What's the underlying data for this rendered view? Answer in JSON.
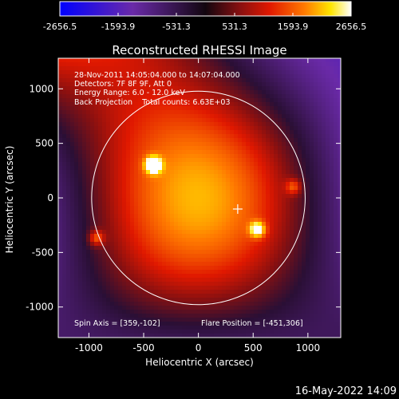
{
  "colorbar": {
    "ticks": [
      -2656.5,
      -1593.9,
      -531.3,
      531.3,
      1593.9,
      2656.5
    ],
    "tick_labels": [
      "-2656.5",
      "-1593.9",
      "-531.3",
      "531.3",
      "1593.9",
      "2656.5"
    ]
  },
  "chart_data": {
    "type": "heatmap",
    "title": "Reconstructed RHESSI Image",
    "xlabel": "Heliocentric X (arcsec)",
    "ylabel": "Heliocentric Y (arcsec)",
    "xlim": [
      -1280,
      1300
    ],
    "ylim": [
      -1280,
      1280
    ],
    "xticks": [
      -1000,
      -500,
      0,
      500,
      1000
    ],
    "yticks": [
      1000,
      500,
      0,
      -500,
      -1000
    ],
    "colorscale_range": [
      -2656.5,
      2656.5
    ],
    "solar_limb_radius_arcsec": 975,
    "cross_marker": [
      359,
      -102
    ],
    "bright_sources": [
      {
        "x": -430,
        "y": 320,
        "level": 2600
      },
      {
        "x": 520,
        "y": -270,
        "level": 1800
      },
      {
        "x": -950,
        "y": -350,
        "level": 1300
      },
      {
        "x": 850,
        "y": 120,
        "level": 1100
      }
    ],
    "info_lines": [
      "28-Nov-2011 14:05:04.000 to 14:07:04.000",
      "Detectors: 7F 8F 9F, Att 0",
      "Energy Range: 6.0 - 12.0 keV",
      "Back Projection    Total counts: 6.63E+03"
    ],
    "spin_axis_label": "Spin Axis = [359,-102]",
    "flare_position_label": "Flare Position = [-451,306]"
  },
  "footer_timestamp": "16-May-2022 14:09",
  "colors": {
    "background": "#000000",
    "foreground": "#ffffff",
    "colormap": [
      "#0000ff",
      "#6a2aa8",
      "#2a0f35",
      "#8a1010",
      "#e01800",
      "#ff7a00",
      "#ffe600",
      "#ffffff"
    ]
  }
}
